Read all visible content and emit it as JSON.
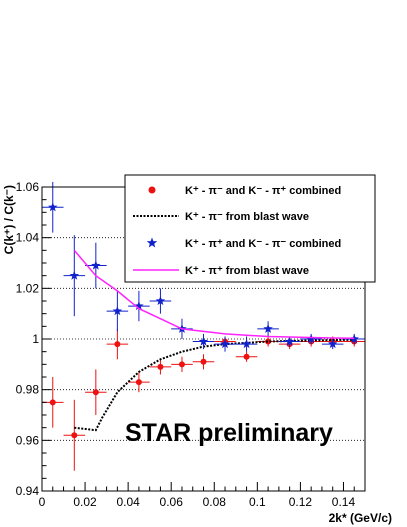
{
  "chart_data": {
    "type": "scatter",
    "title": "",
    "xlabel": "2k* (GeV/c)",
    "ylabel": "C(k⁺) / C(k⁻)",
    "xlim": [
      0,
      0.15
    ],
    "ylim": [
      0.94,
      1.06
    ],
    "x_ticks": [
      "0",
      "0.02",
      "0.04",
      "0.06",
      "0.08",
      "0.1",
      "0.12",
      "0.14"
    ],
    "y_ticks": [
      "0.94",
      "0.96",
      "0.98",
      "1",
      "1.02",
      "1.04",
      "1.06"
    ],
    "grid": "horizontal dotted",
    "annotation": "STAR preliminary",
    "legend_position": "top-right",
    "series": [
      {
        "name": "K⁺ - π⁻  and K⁻ - π⁺  combined",
        "kind": "points",
        "marker": "circle",
        "color": "#ee1111",
        "x": [
          0.005,
          0.015,
          0.025,
          0.035,
          0.045,
          0.055,
          0.065,
          0.075,
          0.085,
          0.095,
          0.105,
          0.115,
          0.125,
          0.135,
          0.145
        ],
        "y": [
          0.975,
          0.962,
          0.979,
          0.998,
          0.983,
          0.989,
          0.99,
          0.991,
          0.999,
          0.993,
          0.999,
          0.998,
          0.999,
          0.999,
          0.999
        ],
        "yerr": [
          0.01,
          0.014,
          0.009,
          0.006,
          0.004,
          0.003,
          0.003,
          0.003,
          0.002,
          0.002,
          0.002,
          0.002,
          0.002,
          0.002,
          0.002
        ],
        "xerr": 0.005
      },
      {
        "name": "K⁺ - π⁻  from blast wave",
        "kind": "line",
        "style": "dotted",
        "color": "#000000",
        "x": [
          0.015,
          0.025,
          0.028,
          0.035,
          0.045,
          0.055,
          0.065,
          0.075,
          0.085,
          0.095,
          0.105,
          0.115,
          0.125,
          0.135,
          0.145
        ],
        "y": [
          0.965,
          0.964,
          0.969,
          0.979,
          0.987,
          0.992,
          0.995,
          0.997,
          0.998,
          0.9985,
          0.999,
          0.9992,
          0.9994,
          0.9996,
          0.9997
        ]
      },
      {
        "name": "K⁺ - π⁺  and K⁻ - π⁻  combined",
        "kind": "points",
        "marker": "star",
        "color": "#1122cc",
        "x": [
          0.005,
          0.015,
          0.025,
          0.035,
          0.045,
          0.055,
          0.065,
          0.075,
          0.085,
          0.095,
          0.105,
          0.115,
          0.125,
          0.135,
          0.145
        ],
        "y": [
          1.052,
          1.025,
          1.029,
          1.011,
          1.013,
          1.015,
          1.004,
          0.999,
          0.998,
          0.998,
          1.004,
          0.999,
          1.0,
          0.998,
          1.0
        ],
        "yerr": [
          0.01,
          0.016,
          0.009,
          0.008,
          0.006,
          0.005,
          0.004,
          0.003,
          0.003,
          0.003,
          0.003,
          0.002,
          0.002,
          0.002,
          0.002
        ],
        "xerr": 0.005
      },
      {
        "name": "K⁺ - π⁺  from blast wave",
        "kind": "line",
        "style": "solid",
        "color": "#ff22ff",
        "x": [
          0.015,
          0.025,
          0.035,
          0.045,
          0.055,
          0.065,
          0.075,
          0.085,
          0.095,
          0.105,
          0.115,
          0.125,
          0.135,
          0.145
        ],
        "y": [
          1.035,
          1.025,
          1.019,
          1.012,
          1.008,
          1.004,
          1.003,
          1.002,
          1.0015,
          1.001,
          1.0008,
          1.0006,
          1.0004,
          1.0003
        ]
      }
    ]
  }
}
